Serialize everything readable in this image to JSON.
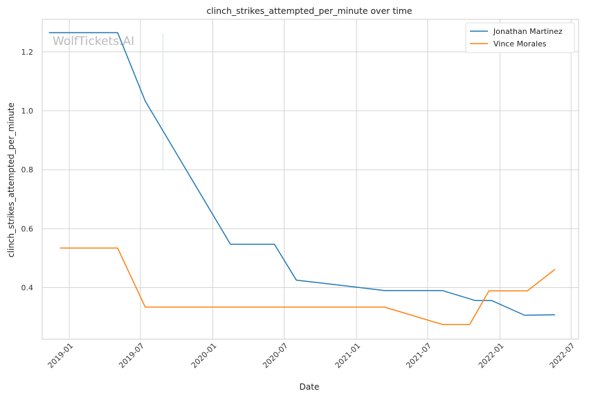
{
  "chart_data": {
    "type": "line",
    "title": "clinch_strikes_attempted_per_minute over time",
    "xlabel": "Date",
    "ylabel": "clinch_strikes_attempted_per_minute",
    "watermark": "WolfTickets.AI",
    "x_ticks": [
      "2019-01",
      "2019-07",
      "2020-01",
      "2020-07",
      "2021-01",
      "2021-07",
      "2022-01",
      "2022-07"
    ],
    "y_ticks": [
      "0.4",
      "0.6",
      "0.8",
      "1.0",
      "1.2"
    ],
    "xlim": [
      "2018-10-24",
      "2022-07-20"
    ],
    "ylim": [
      0.225,
      1.31
    ],
    "grid": true,
    "legend_position": "top-right",
    "series": [
      {
        "name": "Jonathan Martinez",
        "color": "#1f77b4",
        "x": [
          "2018-11-10",
          "2019-05-04",
          "2019-07-13",
          "2020-02-15",
          "2020-06-06",
          "2020-08-01",
          "2020-10-01",
          "2021-03-13",
          "2021-08-07",
          "2021-10-30",
          "2021-12-11",
          "2022-03-05",
          "2022-05-21"
        ],
        "y": [
          1.265,
          1.265,
          1.033,
          0.547,
          0.547,
          0.425,
          0.416,
          0.39,
          0.39,
          0.356,
          0.356,
          0.306,
          0.308
        ]
      },
      {
        "name": "Vince Morales",
        "color": "#ff7f0e",
        "x": [
          "2018-12-08",
          "2019-05-04",
          "2019-07-13",
          "2021-03-13",
          "2021-08-07",
          "2021-10-16",
          "2021-12-04",
          "2022-03-12",
          "2022-05-21"
        ],
        "y": [
          0.534,
          0.534,
          0.334,
          0.334,
          0.275,
          0.275,
          0.389,
          0.389,
          0.462
        ]
      }
    ]
  }
}
